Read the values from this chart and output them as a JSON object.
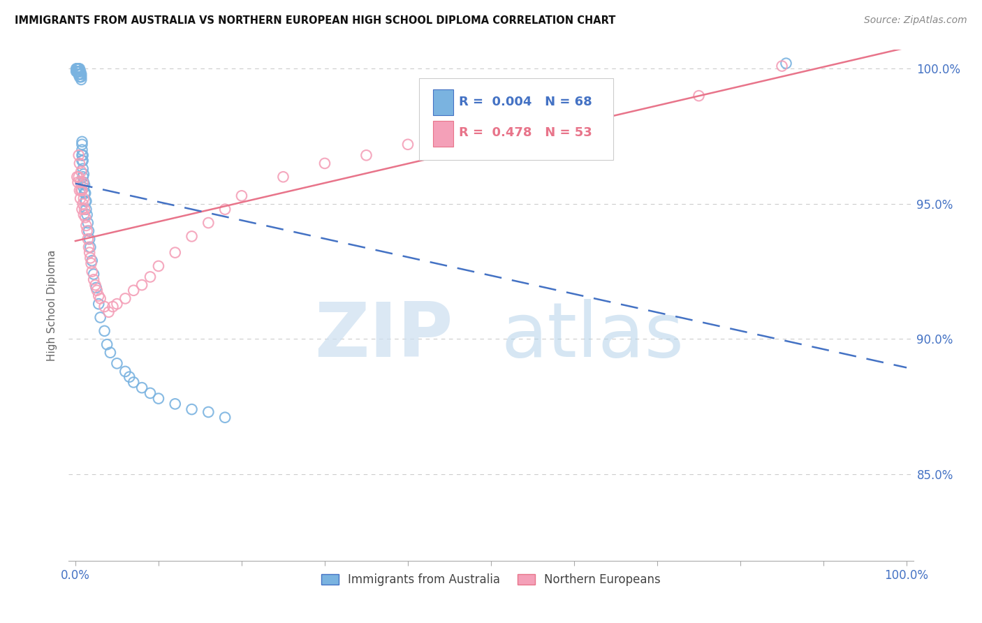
{
  "title": "IMMIGRANTS FROM AUSTRALIA VS NORTHERN EUROPEAN HIGH SCHOOL DIPLOMA CORRELATION CHART",
  "source": "Source: ZipAtlas.com",
  "ylabel": "High School Diploma",
  "legend_label1": "Immigrants from Australia",
  "legend_label2": "Northern Europeans",
  "R1": 0.004,
  "N1": 68,
  "R2": 0.478,
  "N2": 53,
  "color_blue": "#7ab3e0",
  "color_pink": "#f4a0b8",
  "color_blue_line": "#4472c4",
  "color_pink_line": "#e8748a",
  "background": "#ffffff",
  "grid_color": "#cccccc",
  "ytick_values": [
    0.85,
    0.9,
    0.95,
    1.0
  ],
  "blue_x": [
    0.001,
    0.001,
    0.002,
    0.002,
    0.002,
    0.003,
    0.003,
    0.003,
    0.003,
    0.003,
    0.004,
    0.004,
    0.004,
    0.004,
    0.004,
    0.005,
    0.005,
    0.005,
    0.006,
    0.006,
    0.006,
    0.006,
    0.007,
    0.007,
    0.007,
    0.008,
    0.008,
    0.008,
    0.008,
    0.008,
    0.009,
    0.009,
    0.009,
    0.009,
    0.01,
    0.01,
    0.01,
    0.011,
    0.011,
    0.012,
    0.012,
    0.013,
    0.013,
    0.014,
    0.015,
    0.016,
    0.017,
    0.018,
    0.02,
    0.022,
    0.025,
    0.028,
    0.03,
    0.035,
    0.038,
    0.042,
    0.05,
    0.06,
    0.065,
    0.07,
    0.08,
    0.09,
    0.1,
    0.12,
    0.14,
    0.16,
    0.18,
    0.855
  ],
  "blue_y": [
    1.0,
    0.999,
    1.0,
    0.999,
    1.0,
    0.999,
    1.0,
    1.0,
    0.999,
    1.0,
    0.998,
    0.999,
    1.0,
    0.999,
    0.998,
    0.997,
    0.999,
    1.0,
    0.998,
    0.999,
    0.997,
    0.998,
    0.996,
    0.997,
    0.998,
    0.966,
    0.968,
    0.97,
    0.972,
    0.973,
    0.96,
    0.963,
    0.966,
    0.968,
    0.956,
    0.958,
    0.961,
    0.954,
    0.957,
    0.951,
    0.954,
    0.948,
    0.951,
    0.946,
    0.943,
    0.94,
    0.937,
    0.934,
    0.929,
    0.924,
    0.919,
    0.913,
    0.908,
    0.903,
    0.898,
    0.895,
    0.891,
    0.888,
    0.886,
    0.884,
    0.882,
    0.88,
    0.878,
    0.876,
    0.874,
    0.873,
    0.871,
    1.002
  ],
  "pink_x": [
    0.002,
    0.003,
    0.004,
    0.004,
    0.005,
    0.005,
    0.006,
    0.006,
    0.007,
    0.007,
    0.008,
    0.008,
    0.009,
    0.009,
    0.01,
    0.01,
    0.011,
    0.012,
    0.013,
    0.014,
    0.015,
    0.016,
    0.017,
    0.018,
    0.019,
    0.02,
    0.022,
    0.024,
    0.026,
    0.028,
    0.03,
    0.035,
    0.04,
    0.045,
    0.05,
    0.06,
    0.07,
    0.08,
    0.09,
    0.1,
    0.12,
    0.14,
    0.16,
    0.18,
    0.2,
    0.25,
    0.3,
    0.35,
    0.4,
    0.5,
    0.6,
    0.75,
    0.85
  ],
  "pink_y": [
    0.96,
    0.958,
    0.96,
    0.968,
    0.955,
    0.965,
    0.952,
    0.958,
    0.955,
    0.962,
    0.948,
    0.955,
    0.95,
    0.958,
    0.946,
    0.952,
    0.948,
    0.945,
    0.942,
    0.94,
    0.937,
    0.934,
    0.932,
    0.93,
    0.928,
    0.925,
    0.922,
    0.92,
    0.918,
    0.916,
    0.915,
    0.912,
    0.91,
    0.912,
    0.913,
    0.915,
    0.918,
    0.92,
    0.923,
    0.927,
    0.932,
    0.938,
    0.943,
    0.948,
    0.953,
    0.96,
    0.965,
    0.968,
    0.972,
    0.978,
    0.983,
    0.99,
    1.001
  ]
}
